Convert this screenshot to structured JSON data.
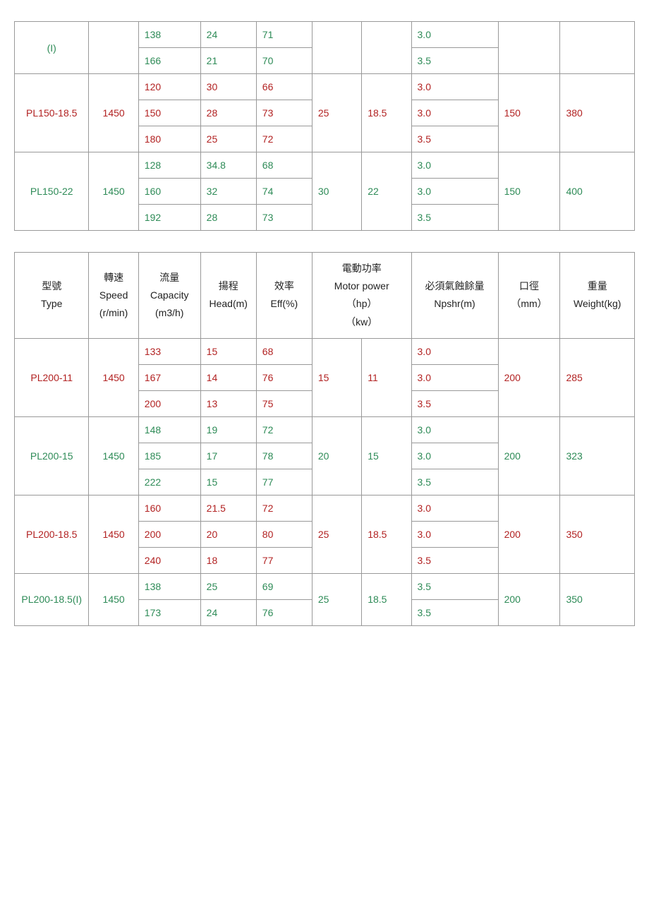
{
  "colors": {
    "green": "#2e8b57",
    "red": "#b22222",
    "border": "#999999",
    "bg": "#ffffff"
  },
  "headers": {
    "type": "型號\nType",
    "speed": "轉速\nSpeed\n(r/min)",
    "capacity": "流量\nCapacity\n(m3/h)",
    "head": "揚程\nHead(m)",
    "eff": "效率\nEff(%)",
    "motor": "電動功率\nMotor power\n（hp）\n（kw）",
    "npsh": "必須氣蝕餘量\nNpshr(m)",
    "dia": "口徑\n（mm）",
    "weight": "重量\nWeight(kg)"
  },
  "table1": [
    {
      "model": "(I)",
      "speed": "",
      "hp": "",
      "kw": "",
      "dia": "",
      "weight": "",
      "color": "green",
      "rows": [
        {
          "cap": "138",
          "head": "24",
          "eff": "71",
          "npsh": "3.0"
        },
        {
          "cap": "166",
          "head": "21",
          "eff": "70",
          "npsh": "3.5"
        }
      ]
    },
    {
      "model": "PL150-18.5",
      "speed": "1450",
      "hp": "25",
      "kw": "18.5",
      "dia": "150",
      "weight": "380",
      "color": "red",
      "rows": [
        {
          "cap": "120",
          "head": "30",
          "eff": "66",
          "npsh": "3.0"
        },
        {
          "cap": "150",
          "head": "28",
          "eff": "73",
          "npsh": "3.0"
        },
        {
          "cap": "180",
          "head": "25",
          "eff": "72",
          "npsh": "3.5"
        }
      ]
    },
    {
      "model": "PL150-22",
      "speed": "1450",
      "hp": "30",
      "kw": "22",
      "dia": "150",
      "weight": "400",
      "color": "green",
      "rows": [
        {
          "cap": "128",
          "head": "34.8",
          "eff": "68",
          "npsh": "3.0"
        },
        {
          "cap": "160",
          "head": "32",
          "eff": "74",
          "npsh": "3.0"
        },
        {
          "cap": "192",
          "head": "28",
          "eff": "73",
          "npsh": "3.5"
        }
      ]
    }
  ],
  "table2": [
    {
      "model": "PL200-11",
      "speed": "1450",
      "hp": "15",
      "kw": "11",
      "dia": "200",
      "weight": "285",
      "color": "red",
      "rows": [
        {
          "cap": "133",
          "head": "15",
          "eff": "68",
          "npsh": "3.0"
        },
        {
          "cap": "167",
          "head": "14",
          "eff": "76",
          "npsh": "3.0"
        },
        {
          "cap": "200",
          "head": "13",
          "eff": "75",
          "npsh": "3.5"
        }
      ]
    },
    {
      "model": "PL200-15",
      "speed": "1450",
      "hp": "20",
      "kw": "15",
      "dia": "200",
      "weight": "323",
      "color": "green",
      "rows": [
        {
          "cap": "148",
          "head": "19",
          "eff": "72",
          "npsh": "3.0"
        },
        {
          "cap": "185",
          "head": "17",
          "eff": "78",
          "npsh": "3.0"
        },
        {
          "cap": "222",
          "head": "15",
          "eff": "77",
          "npsh": "3.5"
        }
      ]
    },
    {
      "model": "PL200-18.5",
      "speed": "1450",
      "hp": "25",
      "kw": "18.5",
      "dia": "200",
      "weight": "350",
      "color": "red",
      "rows": [
        {
          "cap": "160",
          "head": "21.5",
          "eff": "72",
          "npsh": "3.0"
        },
        {
          "cap": "200",
          "head": "20",
          "eff": "80",
          "npsh": "3.0"
        },
        {
          "cap": "240",
          "head": "18",
          "eff": "77",
          "npsh": "3.5"
        }
      ]
    },
    {
      "model": "PL200-18.5(I)",
      "speed": "1450",
      "hp": "25",
      "kw": "18.5",
      "dia": "200",
      "weight": "350",
      "color": "green",
      "rows": [
        {
          "cap": "138",
          "head": "25",
          "eff": "69",
          "npsh": "3.5"
        },
        {
          "cap": "173",
          "head": "24",
          "eff": "76",
          "npsh": "3.5"
        }
      ]
    }
  ]
}
